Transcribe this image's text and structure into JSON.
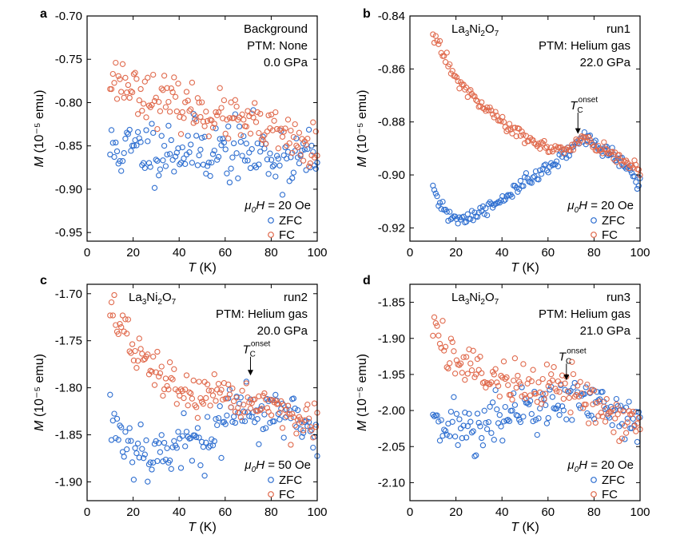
{
  "colors": {
    "zfc": "#2f6fd0",
    "fc": "#e06a4d",
    "axis": "#000000"
  },
  "chart_data": [
    {
      "letter": "a",
      "type": "scatter",
      "xlabel_var": "T",
      "xlabel_unit": "(K)",
      "ylabel_var": "M",
      "ylabel_unit": "(10⁻⁵ emu)",
      "xlim": [
        0,
        100
      ],
      "ylim": [
        -0.96,
        -0.7
      ],
      "xticks": [
        0,
        20,
        40,
        60,
        80,
        100
      ],
      "xtick_labels": [
        "0",
        "20",
        "40",
        "60",
        "80",
        "100"
      ],
      "yticks": [
        -0.7,
        -0.75,
        -0.8,
        -0.85,
        -0.9,
        -0.95
      ],
      "ytick_labels": [
        "-0.70",
        "-0.75",
        "-0.80",
        "-0.85",
        "-0.90",
        "-0.95"
      ],
      "annotations": {
        "l1": "Background",
        "l2": "PTM: None",
        "l3": "0.0 GPa"
      },
      "field": {
        "sym": "μ",
        "sub": "0",
        "var": "H",
        "rest": " = 20 Oe"
      },
      "legend": {
        "zfc": "ZFC",
        "fc": "FC"
      },
      "tc_text": null,
      "series": [
        {
          "name": "ZFC",
          "noise": 0.018,
          "seed": 11,
          "points": [
            [
              10,
              -0.855
            ],
            [
              30,
              -0.853
            ],
            [
              50,
              -0.855
            ],
            [
              70,
              -0.857
            ],
            [
              85,
              -0.862
            ],
            [
              100,
              -0.866
            ]
          ]
        },
        {
          "name": "FC",
          "noise": 0.013,
          "seed": 23,
          "points": [
            [
              10,
              -0.77
            ],
            [
              20,
              -0.782
            ],
            [
              30,
              -0.795
            ],
            [
              50,
              -0.81
            ],
            [
              70,
              -0.825
            ],
            [
              85,
              -0.838
            ],
            [
              100,
              -0.858
            ]
          ]
        }
      ]
    },
    {
      "letter": "b",
      "type": "scatter",
      "xlabel_var": "T",
      "xlabel_unit": "(K)",
      "ylabel_var": "M",
      "ylabel_unit": "(10⁻⁵ emu)",
      "xlim": [
        0,
        100
      ],
      "ylim": [
        -0.925,
        -0.84
      ],
      "xticks": [
        0,
        20,
        40,
        60,
        80,
        100
      ],
      "xtick_labels": [
        "0",
        "20",
        "40",
        "60",
        "80",
        "100"
      ],
      "yticks": [
        -0.84,
        -0.86,
        -0.88,
        -0.9,
        -0.92
      ],
      "ytick_labels": [
        "-0.84",
        "-0.86",
        "-0.88",
        "-0.90",
        "-0.92"
      ],
      "annotations": {
        "formula": [
          "La",
          "3",
          "Ni",
          "2",
          "O",
          "7"
        ],
        "l1": "run1",
        "l2": "PTM: Helium gas",
        "l3": "22.0 GPa"
      },
      "field": {
        "sym": "μ",
        "sub": "0",
        "var": "H",
        "rest": " = 20 Oe"
      },
      "legend": {
        "zfc": "ZFC",
        "fc": "FC"
      },
      "tc_text": {
        "var": "T",
        "sub": "C",
        "sup": "onset",
        "x": 73,
        "y_top": -0.8765,
        "y_bot": -0.8845
      },
      "series": [
        {
          "name": "ZFC",
          "noise": 0.0014,
          "seed": 31,
          "points": [
            [
              10,
              -0.906
            ],
            [
              14,
              -0.913
            ],
            [
              20,
              -0.917
            ],
            [
              30,
              -0.915
            ],
            [
              40,
              -0.909
            ],
            [
              50,
              -0.903
            ],
            [
              60,
              -0.898
            ],
            [
              70,
              -0.89
            ],
            [
              75,
              -0.886
            ],
            [
              80,
              -0.888
            ],
            [
              90,
              -0.893
            ],
            [
              100,
              -0.903
            ]
          ]
        },
        {
          "name": "FC",
          "noise": 0.0012,
          "seed": 47,
          "points": [
            [
              10,
              -0.845
            ],
            [
              15,
              -0.856
            ],
            [
              20,
              -0.864
            ],
            [
              30,
              -0.873
            ],
            [
              40,
              -0.88
            ],
            [
              50,
              -0.886
            ],
            [
              60,
              -0.89
            ],
            [
              70,
              -0.891
            ],
            [
              75,
              -0.885
            ],
            [
              80,
              -0.889
            ],
            [
              90,
              -0.893
            ],
            [
              100,
              -0.899
            ]
          ]
        }
      ]
    },
    {
      "letter": "c",
      "type": "scatter",
      "xlabel_var": "T",
      "xlabel_unit": "(K)",
      "ylabel_var": "M",
      "ylabel_unit": "(10⁻⁵ emu)",
      "xlim": [
        0,
        100
      ],
      "ylim": [
        -1.92,
        -1.69
      ],
      "xticks": [
        0,
        20,
        40,
        60,
        80,
        100
      ],
      "xtick_labels": [
        "0",
        "20",
        "40",
        "60",
        "80",
        "100"
      ],
      "yticks": [
        -1.7,
        -1.75,
        -1.8,
        -1.85,
        -1.9
      ],
      "ytick_labels": [
        "-1.70",
        "-1.75",
        "-1.80",
        "-1.85",
        "-1.90"
      ],
      "annotations": {
        "formula": [
          "La",
          "3",
          "Ni",
          "2",
          "O",
          "7"
        ],
        "l1": "run2",
        "l2": "PTM: Helium gas",
        "l3": "20.0 GPa"
      },
      "field": {
        "sym": "μ",
        "sub": "0",
        "var": "H",
        "rest": " = 50 Oe"
      },
      "legend": {
        "zfc": "ZFC",
        "fc": "FC"
      },
      "tc_text": {
        "var": "T",
        "sub": "C",
        "sup": "onset",
        "x": 71,
        "y_top": -1.767,
        "y_bot": -1.787
      },
      "series": [
        {
          "name": "ZFC",
          "noise": 0.016,
          "seed": 53,
          "points": [
            [
              10,
              -1.83
            ],
            [
              15,
              -1.85
            ],
            [
              25,
              -1.868
            ],
            [
              35,
              -1.866
            ],
            [
              45,
              -1.86
            ],
            [
              55,
              -1.845
            ],
            [
              65,
              -1.828
            ],
            [
              75,
              -1.823
            ],
            [
              85,
              -1.83
            ],
            [
              95,
              -1.84
            ],
            [
              100,
              -1.845
            ]
          ]
        },
        {
          "name": "FC",
          "noise": 0.011,
          "seed": 67,
          "points": [
            [
              10,
              -1.712
            ],
            [
              15,
              -1.735
            ],
            [
              20,
              -1.76
            ],
            [
              30,
              -1.785
            ],
            [
              40,
              -1.8
            ],
            [
              50,
              -1.812
            ],
            [
              60,
              -1.815
            ],
            [
              70,
              -1.812
            ],
            [
              80,
              -1.82
            ],
            [
              90,
              -1.83
            ],
            [
              100,
              -1.848
            ]
          ]
        }
      ]
    },
    {
      "letter": "d",
      "type": "scatter",
      "xlabel_var": "T",
      "xlabel_unit": "(K)",
      "ylabel_var": "M",
      "ylabel_unit": "(10⁻⁵ emu)",
      "xlim": [
        0,
        100
      ],
      "ylim": [
        -2.125,
        -1.825
      ],
      "xticks": [
        0,
        20,
        40,
        60,
        80,
        100
      ],
      "xtick_labels": [
        "0",
        "20",
        "40",
        "60",
        "80",
        "100"
      ],
      "yticks": [
        -1.85,
        -1.9,
        -1.95,
        -2.0,
        -2.05,
        -2.1
      ],
      "ytick_labels": [
        "-1.85",
        "-1.90",
        "-1.95",
        "-2.00",
        "-2.05",
        "-2.10"
      ],
      "annotations": {
        "formula": [
          "La",
          "3",
          "Ni",
          "2",
          "O",
          "7"
        ],
        "l1": "run3",
        "l2": "PTM: Helium gas",
        "l3": "21.0 GPa"
      },
      "field": {
        "sym": "μ",
        "sub": "0",
        "var": "H",
        "rest": " = 20 Oe"
      },
      "legend": {
        "zfc": "ZFC",
        "fc": "FC"
      },
      "tc_text": {
        "var": "T",
        "sub": "C",
        "sup": "onset",
        "x": 68,
        "y_top": -1.935,
        "y_bot": -1.958
      },
      "series": [
        {
          "name": "ZFC",
          "noise": 0.018,
          "seed": 71,
          "points": [
            [
              10,
              -2.0
            ],
            [
              20,
              -2.025
            ],
            [
              30,
              -2.025
            ],
            [
              40,
              -2.01
            ],
            [
              50,
              -2.0
            ],
            [
              60,
              -1.995
            ],
            [
              70,
              -1.985
            ],
            [
              80,
              -1.995
            ],
            [
              90,
              -2.005
            ],
            [
              100,
              -2.02
            ]
          ]
        },
        {
          "name": "FC",
          "noise": 0.017,
          "seed": 89,
          "points": [
            [
              10,
              -1.88
            ],
            [
              20,
              -1.93
            ],
            [
              30,
              -1.945
            ],
            [
              40,
              -1.955
            ],
            [
              50,
              -1.965
            ],
            [
              60,
              -1.97
            ],
            [
              70,
              -1.968
            ],
            [
              80,
              -1.985
            ],
            [
              90,
              -2.005
            ],
            [
              100,
              -2.025
            ]
          ]
        }
      ]
    }
  ]
}
